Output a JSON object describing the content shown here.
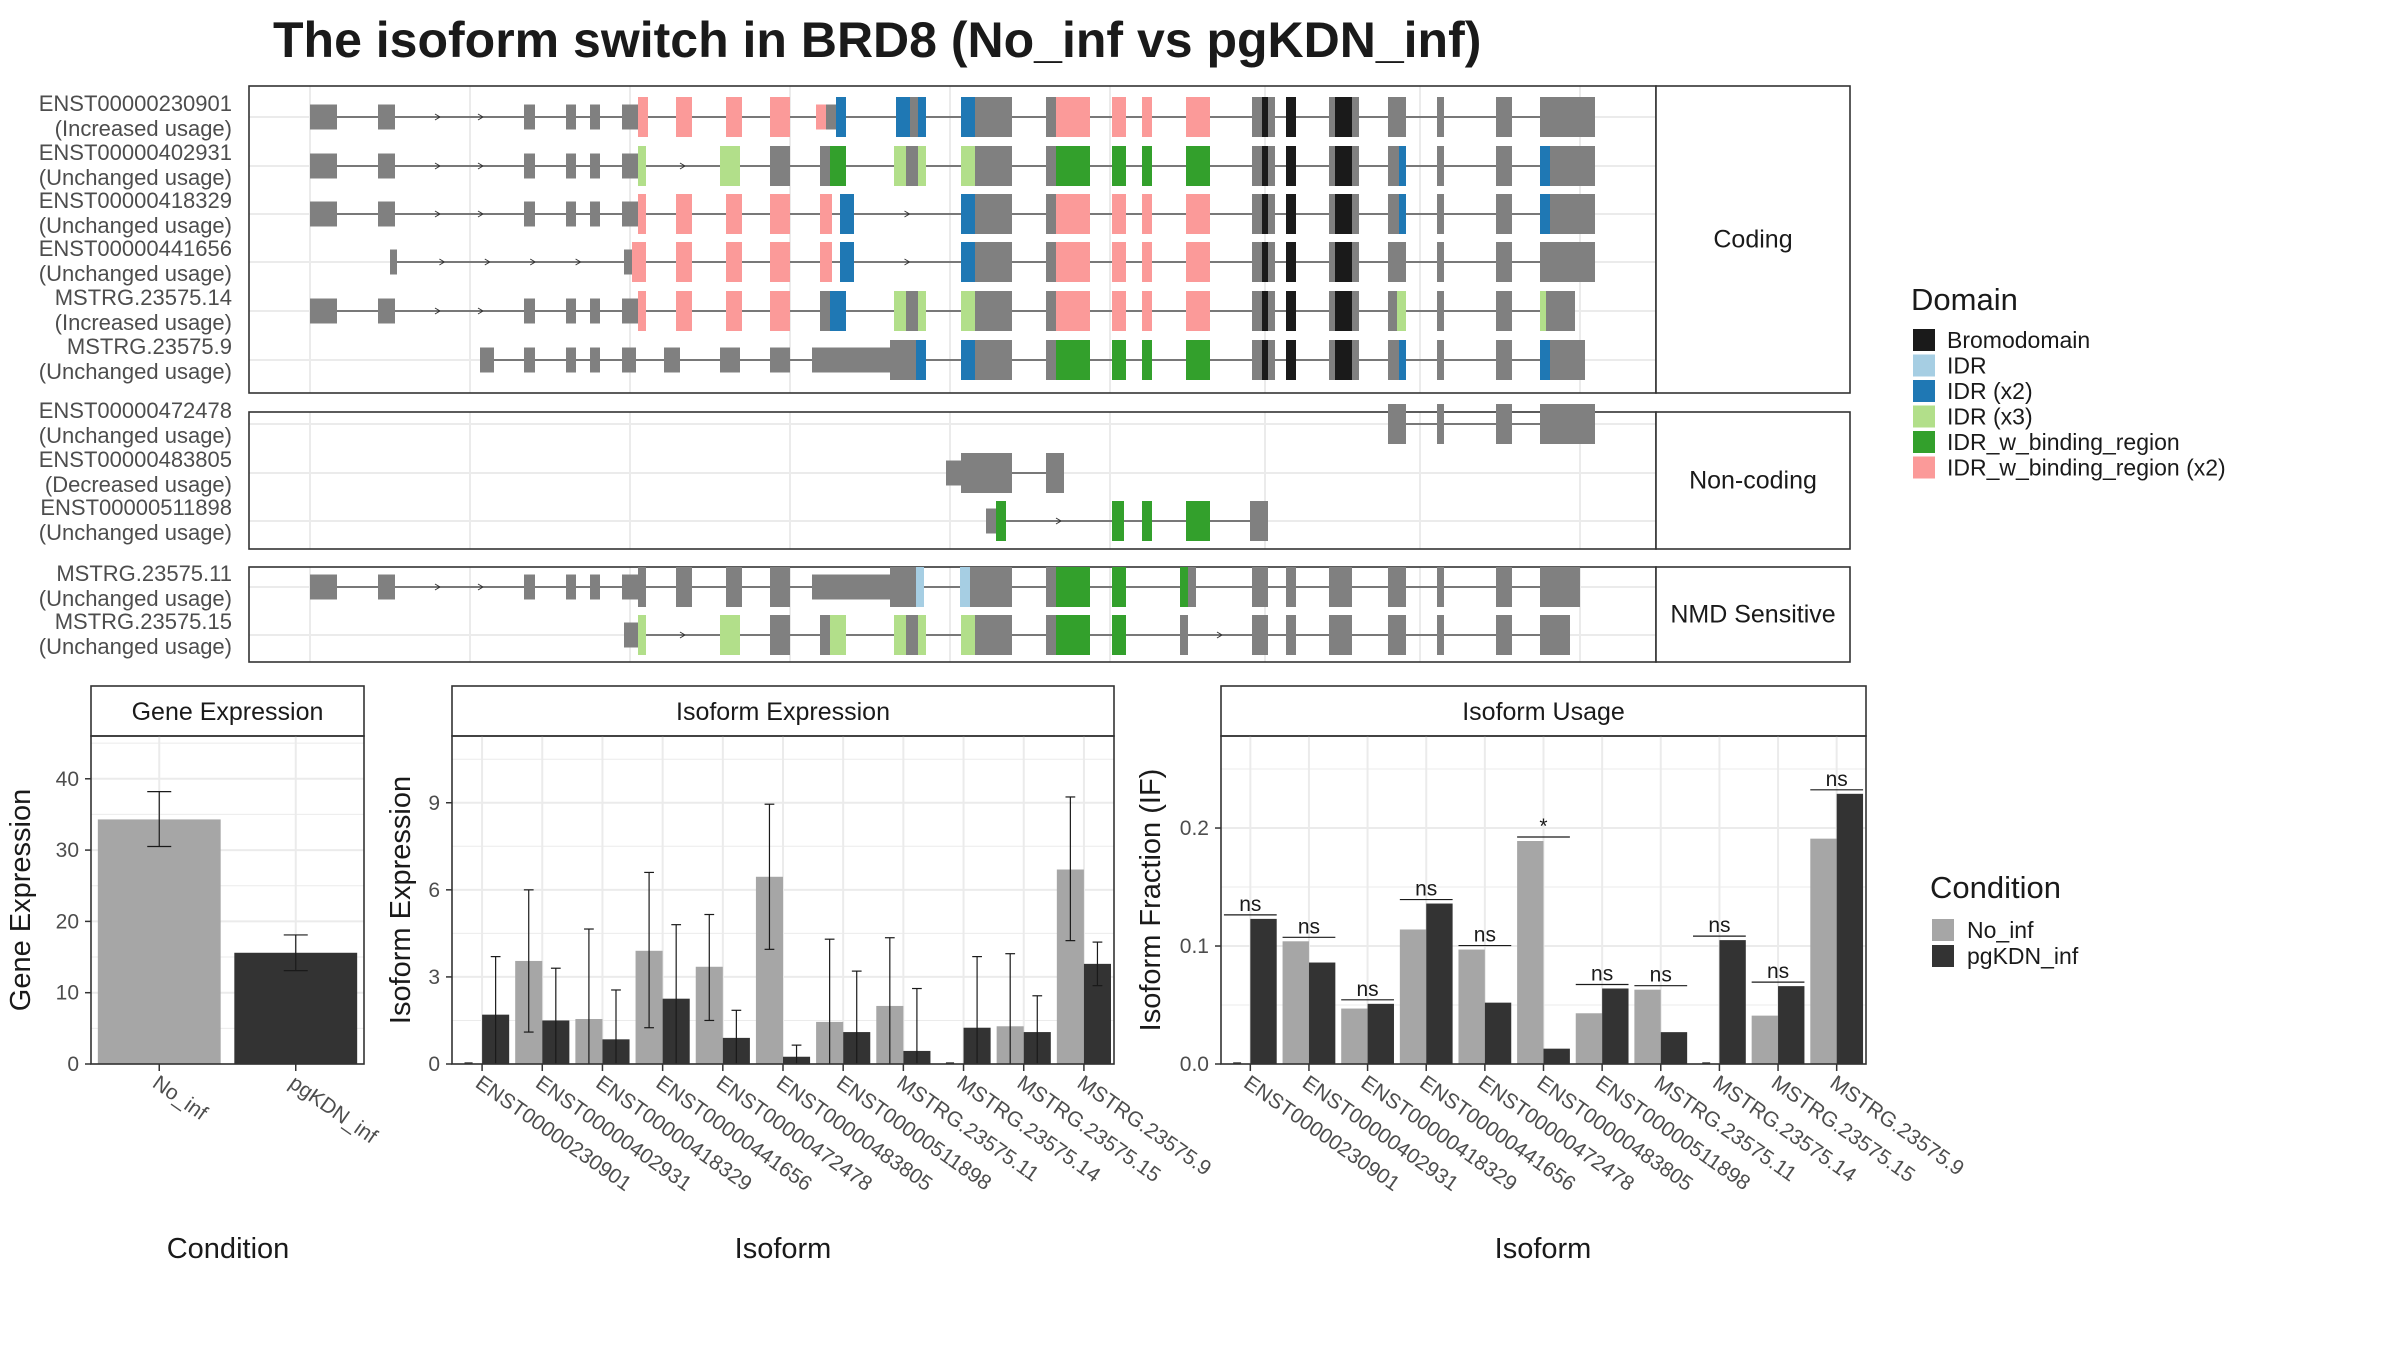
{
  "title": "The isoform switch in BRD8 (No_inf vs pgKDN_inf)",
  "colors": {
    "exon": "#808080",
    "Bromodomain": "#1a1a1a",
    "IDR": "#a6cee3",
    "IDR (x2)": "#1f78b4",
    "IDR (x3)": "#b2df8a",
    "IDR_w_binding_region": "#33a02c",
    "IDR_w_binding_region (x2)": "#fb9a99",
    "No_inf": "#a6a6a6",
    "pgKDN_inf": "#333333"
  },
  "structure": {
    "panels": [
      {
        "label": "Coding",
        "isoforms": [
          {
            "id": "ENST00000230901",
            "usage": "(Increased usage)"
          },
          {
            "id": "ENST00000402931",
            "usage": "(Unchanged usage)"
          },
          {
            "id": "ENST00000418329",
            "usage": "(Unchanged usage)"
          },
          {
            "id": "ENST00000441656",
            "usage": "(Unchanged usage)"
          },
          {
            "id": "MSTRG.23575.14",
            "usage": "(Increased usage)"
          },
          {
            "id": "MSTRG.23575.9",
            "usage": "(Unchanged usage)"
          }
        ]
      },
      {
        "label": "Non-coding",
        "isoforms": [
          {
            "id": "ENST00000472478",
            "usage": "(Unchanged usage)"
          },
          {
            "id": "ENST00000483805",
            "usage": "(Decreased usage)"
          },
          {
            "id": "ENST00000511898",
            "usage": "(Unchanged usage)"
          }
        ]
      },
      {
        "label": "NMD Sensitive",
        "isoforms": [
          {
            "id": "MSTRG.23575.11",
            "usage": "(Unchanged usage)"
          },
          {
            "id": "MSTRG.23575.15",
            "usage": "(Unchanged usage)"
          }
        ]
      }
    ]
  },
  "legends": {
    "domain": {
      "title": "Domain",
      "items": [
        "Bromodomain",
        "IDR",
        "IDR (x2)",
        "IDR (x3)",
        "IDR_w_binding_region",
        "IDR_w_binding_region (x2)"
      ]
    },
    "condition": {
      "title": "Condition",
      "items": [
        "No_inf",
        "pgKDN_inf"
      ]
    }
  },
  "chart_data": [
    {
      "type": "bar",
      "panel": "Gene Expression",
      "xlabel": "Condition",
      "ylabel": "Gene Expression",
      "ylim": [
        0,
        46
      ],
      "yticks": [
        0,
        10,
        20,
        30,
        40
      ],
      "categories": [
        "No_inf",
        "pgKDN_inf"
      ],
      "values": [
        34.3,
        15.6
      ],
      "err_low": [
        30.5,
        13.1
      ],
      "err_high": [
        38.2,
        18.1
      ],
      "grid": true
    },
    {
      "type": "bar",
      "panel": "Isoform Expression",
      "xlabel": "Isoform",
      "ylabel": "Isoform Expression",
      "ylim": [
        0,
        11.3
      ],
      "yticks": [
        0,
        3,
        6,
        9
      ],
      "categories": [
        "ENST00000230901",
        "ENST00000402931",
        "ENST00000418329",
        "ENST00000441656",
        "ENST00000472478",
        "ENST00000483805",
        "ENST00000511898",
        "MSTRG.23575.11",
        "MSTRG.23575.14",
        "MSTRG.23575.15",
        "MSTRG.23575.9"
      ],
      "series": [
        {
          "name": "No_inf",
          "values": [
            0.0,
            3.55,
            1.55,
            3.9,
            3.35,
            6.45,
            1.45,
            2.0,
            0.0,
            1.3,
            6.7
          ],
          "err_low": [
            0.0,
            1.1,
            0.0,
            1.25,
            1.5,
            3.95,
            0.0,
            0.0,
            0.0,
            0.0,
            4.25
          ],
          "err_high": [
            0.0,
            6.0,
            4.65,
            6.6,
            5.15,
            8.95,
            4.3,
            4.35,
            0.0,
            3.8,
            9.2
          ]
        },
        {
          "name": "pgKDN_inf",
          "values": [
            1.7,
            1.5,
            0.85,
            2.25,
            0.9,
            0.25,
            1.1,
            0.45,
            1.25,
            1.1,
            3.45
          ],
          "err_low": [
            0.0,
            0.0,
            0.0,
            0.0,
            0.0,
            0.0,
            0.0,
            0.0,
            0.0,
            0.0,
            2.7
          ],
          "err_high": [
            3.7,
            3.3,
            2.55,
            4.8,
            1.85,
            0.65,
            3.2,
            2.6,
            3.7,
            2.35,
            4.2
          ]
        }
      ],
      "grid": true
    },
    {
      "type": "bar",
      "panel": "Isoform Usage",
      "xlabel": "Isoform",
      "ylabel": "Isoform Fraction (IF)",
      "ylim": [
        0,
        0.278
      ],
      "yticks": [
        0.0,
        0.1,
        0.2
      ],
      "ytick_labels": [
        "0.0",
        "0.1",
        "0.2"
      ],
      "categories": [
        "ENST00000230901",
        "ENST00000402931",
        "ENST00000418329",
        "ENST00000441656",
        "ENST00000472478",
        "ENST00000483805",
        "ENST00000511898",
        "MSTRG.23575.11",
        "MSTRG.23575.14",
        "MSTRG.23575.15",
        "MSTRG.23575.9"
      ],
      "series": [
        {
          "name": "No_inf",
          "values": [
            0.0,
            0.104,
            0.047,
            0.114,
            0.097,
            0.189,
            0.043,
            0.063,
            0.0,
            0.041,
            0.191
          ]
        },
        {
          "name": "pgKDN_inf",
          "values": [
            0.123,
            0.086,
            0.051,
            0.136,
            0.052,
            0.013,
            0.064,
            0.027,
            0.105,
            0.066,
            0.229
          ]
        }
      ],
      "significance": [
        "ns",
        "ns",
        "ns",
        "ns",
        "ns",
        "*",
        "ns",
        "ns",
        "ns",
        "ns",
        "ns"
      ],
      "grid": true
    }
  ]
}
